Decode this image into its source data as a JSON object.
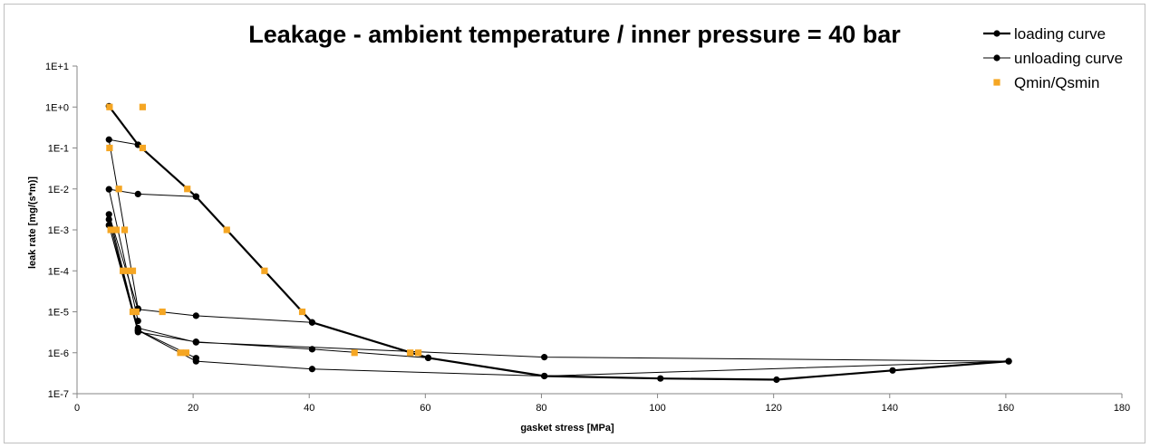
{
  "chart_data": {
    "type": "scatter",
    "title": "Leakage - ambient temperature / inner pressure = 40 bar",
    "xlabel": "gasket stress [MPa]",
    "ylabel": "leak rate [mg/(s*m)]",
    "xlim": [
      0,
      180
    ],
    "x_ticks": [
      0,
      20,
      40,
      60,
      80,
      100,
      120,
      140,
      160,
      180
    ],
    "y_scale": "log",
    "ylim": [
      1e-07,
      10
    ],
    "y_ticks": [
      {
        "value": 1e-07,
        "label": "1E-7"
      },
      {
        "value": 1e-06,
        "label": "1E-6"
      },
      {
        "value": 1e-05,
        "label": "1E-5"
      },
      {
        "value": 0.0001,
        "label": "1E-4"
      },
      {
        "value": 0.001,
        "label": "1E-3"
      },
      {
        "value": 0.01,
        "label": "1E-2"
      },
      {
        "value": 0.1,
        "label": "1E-1"
      },
      {
        "value": 1,
        "label": "1E+0"
      },
      {
        "value": 10,
        "label": "1E+1"
      }
    ],
    "grid": false,
    "legend_position": "top-right",
    "series": [
      {
        "name": "loading curve",
        "style": "line-marker",
        "color": "#000000",
        "line_width": 2.2,
        "points": [
          [
            5.5,
            1.05
          ],
          [
            10.5,
            0.12
          ],
          [
            20.5,
            0.0065
          ],
          [
            40.5,
            5.5e-06
          ],
          [
            60.5,
            7.5e-07
          ],
          [
            80.5,
            2.7e-07
          ],
          [
            100.5,
            2.35e-07
          ],
          [
            120.5,
            2.2e-07
          ],
          [
            140.5,
            3.7e-07
          ],
          [
            160.5,
            6.2e-07
          ]
        ]
      },
      {
        "name": "unloading curve",
        "style": "line-marker",
        "color": "#000000",
        "line_width": 1,
        "segments": [
          [
            [
              10.5,
              0.12
            ],
            [
              5.5,
              0.16
            ],
            [
              10.5,
              1.2e-05
            ]
          ],
          [
            [
              20.5,
              0.0065
            ],
            [
              10.5,
              0.0075
            ],
            [
              5.5,
              0.0098
            ],
            [
              10.5,
              6e-06
            ]
          ],
          [
            [
              40.5,
              5.5e-06
            ],
            [
              20.5,
              8e-06
            ],
            [
              10.5,
              1.15e-05
            ],
            [
              5.5,
              0.0024
            ],
            [
              10.5,
              3.6e-06
            ],
            [
              20.5,
              7.4e-07
            ]
          ],
          [
            [
              60.5,
              7.5e-07
            ],
            [
              40.5,
              1.22e-06
            ],
            [
              20.5,
              1.85e-06
            ],
            [
              10.5,
              3.2e-06
            ],
            [
              5.5,
              0.0013
            ],
            [
              10.5,
              4e-06
            ],
            [
              20.5,
              1.8e-06
            ],
            [
              80.5,
              7.8e-07
            ],
            [
              160.5,
              6.2e-07
            ],
            [
              80.5,
              2.7e-07
            ],
            [
              40.5,
              4e-07
            ],
            [
              20.5,
              6.2e-07
            ],
            [
              10.5,
              3.5e-06
            ],
            [
              5.5,
              0.0018
            ]
          ]
        ]
      },
      {
        "name": "Qmin/Qsmin",
        "style": "marker",
        "color": "#f5a623",
        "points": [
          [
            5.6,
            1.0
          ],
          [
            5.6,
            0.1
          ],
          [
            11.3,
            1.0
          ],
          [
            11.3,
            0.1
          ],
          [
            19.0,
            0.01
          ],
          [
            7.2,
            0.01
          ],
          [
            25.8,
            0.001
          ],
          [
            5.8,
            0.001
          ],
          [
            6.8,
            0.001
          ],
          [
            8.2,
            0.001
          ],
          [
            32.3,
            0.0001
          ],
          [
            7.9,
            0.0001
          ],
          [
            8.9,
            0.0001
          ],
          [
            9.6,
            0.0001
          ],
          [
            38.8,
            1e-05
          ],
          [
            9.6,
            1e-05
          ],
          [
            10.2,
            1e-05
          ],
          [
            14.7,
            1e-05
          ],
          [
            47.8,
            1e-06
          ],
          [
            57.4,
            1e-06
          ],
          [
            58.8,
            1e-06
          ],
          [
            17.8,
            1e-06
          ],
          [
            18.8,
            1e-06
          ]
        ]
      }
    ]
  }
}
